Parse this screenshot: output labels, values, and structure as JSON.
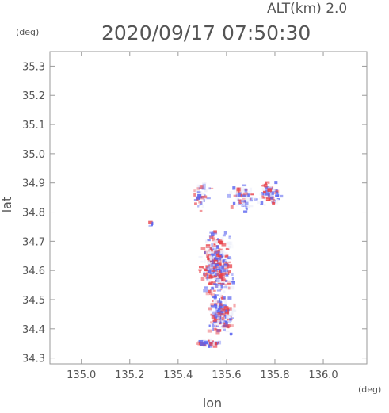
{
  "header": {
    "altitude_label": "ALT(km) 2.0",
    "datetime": "2020/09/17 07:50:30"
  },
  "chart_data": {
    "type": "heatmap",
    "title": "2020/09/17 07:50:30",
    "subtitle": "ALT(km) 2.0",
    "xlabel": "lon",
    "ylabel": "lat",
    "x_unit": "(deg)",
    "y_unit": "(deg)",
    "xlim": [
      134.87,
      136.18
    ],
    "ylim": [
      34.28,
      35.35
    ],
    "xticks": [
      135.0,
      135.2,
      135.4,
      135.6,
      135.8,
      136.0
    ],
    "xtick_labels": [
      "135.0",
      "135.2",
      "135.4",
      "135.6",
      "135.8",
      "136.0"
    ],
    "yticks": [
      34.3,
      34.4,
      34.5,
      34.6,
      34.7,
      34.8,
      34.9,
      35.0,
      35.1,
      35.2,
      35.3
    ],
    "ytick_labels": [
      "34.3",
      "34.4",
      "34.5",
      "34.6",
      "34.7",
      "34.8",
      "34.9",
      "35.0",
      "35.1",
      "35.2",
      "35.3"
    ],
    "grid": false,
    "colors": {
      "positive": "#e8424a",
      "negative": "#5a64f0",
      "neutral": "#eef0fa"
    },
    "clusters": [
      {
        "lon": 135.56,
        "lat": 34.62,
        "spread_lon": 0.05,
        "spread_lat": 0.09,
        "count": 420
      },
      {
        "lon": 135.58,
        "lat": 34.45,
        "spread_lon": 0.04,
        "spread_lat": 0.05,
        "count": 220
      },
      {
        "lon": 135.5,
        "lat": 34.86,
        "spread_lon": 0.03,
        "spread_lat": 0.04,
        "count": 40
      },
      {
        "lon": 135.67,
        "lat": 34.85,
        "spread_lon": 0.04,
        "spread_lat": 0.04,
        "count": 70
      },
      {
        "lon": 135.78,
        "lat": 34.86,
        "spread_lon": 0.04,
        "spread_lat": 0.03,
        "count": 70
      },
      {
        "lon": 135.53,
        "lat": 34.35,
        "spread_lon": 0.04,
        "spread_lat": 0.01,
        "count": 50
      },
      {
        "lon": 135.29,
        "lat": 34.76,
        "spread_lon": 0.01,
        "spread_lat": 0.01,
        "count": 6
      }
    ]
  }
}
